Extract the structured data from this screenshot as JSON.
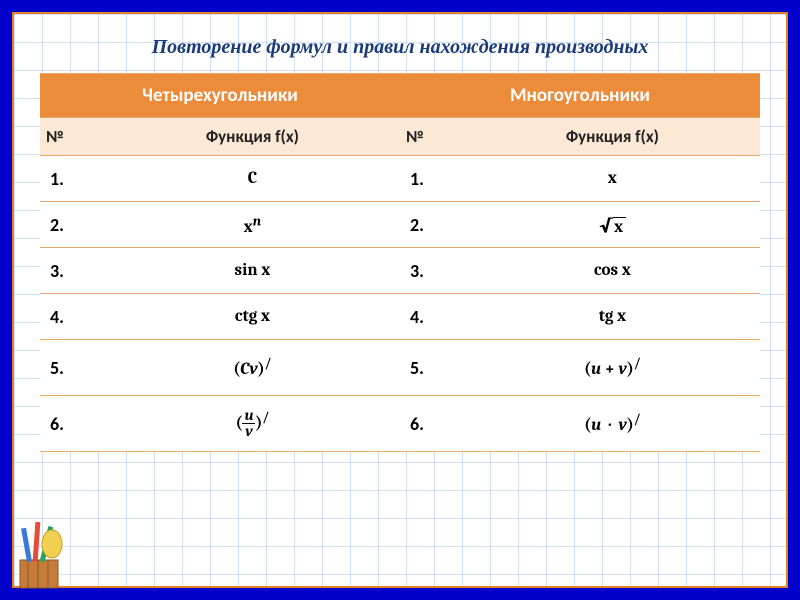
{
  "title": "Повторение формул и правил нахождения производных",
  "colors": {
    "frame": "#0000cc",
    "slide_border": "#e67e22",
    "grid": "#7aaadc",
    "header_bg": "#ec8b3a",
    "header_fg": "#ffffff",
    "subheader_bg": "#fde8d6",
    "row_border": "#e9a86b",
    "title_color": "#1a3a7a"
  },
  "typography": {
    "title_fontsize": 20,
    "title_style": "italic bold serif",
    "header_fontsize": 19,
    "sub_fontsize": 17,
    "cell_fontsize": 17,
    "math_font": "Cambria/Times serif"
  },
  "table": {
    "type": "table",
    "group_headers": [
      "Четырехугольники",
      "Многоугольники"
    ],
    "sub_headers": {
      "num": "№",
      "fx": "Функция f(x)"
    },
    "left_rows": [
      {
        "n": "1.",
        "fx_plain": "C"
      },
      {
        "n": "2.",
        "fx_html": "x<sup style=\"font-style:italic;font-weight:bold\">n</sup>"
      },
      {
        "n": "3.",
        "fx_plain": "sin x"
      },
      {
        "n": "4.",
        "fx_plain": "ctg x"
      },
      {
        "n": "5.",
        "fx_html": "(<span style=\"font-style:italic\">C</span><span style=\"font-style:italic\">v</span>)<sup class=\"deriv\">/</sup>"
      },
      {
        "n": "6.",
        "fx_frac": {
          "num": "u",
          "den": "v"
        },
        "fx_frac_deriv": true
      }
    ],
    "right_rows": [
      {
        "n": "1.",
        "fx_plain": "x"
      },
      {
        "n": "2.",
        "fx_sqrt": "x"
      },
      {
        "n": "3.",
        "fx_plain": "cos x"
      },
      {
        "n": "4.",
        "fx_plain": "tg x"
      },
      {
        "n": "5.",
        "fx_html": "(<span style=\"font-style:italic\">u</span> + <span style=\"font-style:italic\">v</span>)<sup class=\"deriv\">/</sup>"
      },
      {
        "n": "6.",
        "fx_html": "(<span style=\"font-style:italic\">u</span> &nbsp;·&nbsp; <span style=\"font-style:italic\">v</span>)<sup class=\"deriv\">/</sup>"
      }
    ],
    "col_widths_pct": [
      9,
      41,
      9,
      41
    ]
  }
}
